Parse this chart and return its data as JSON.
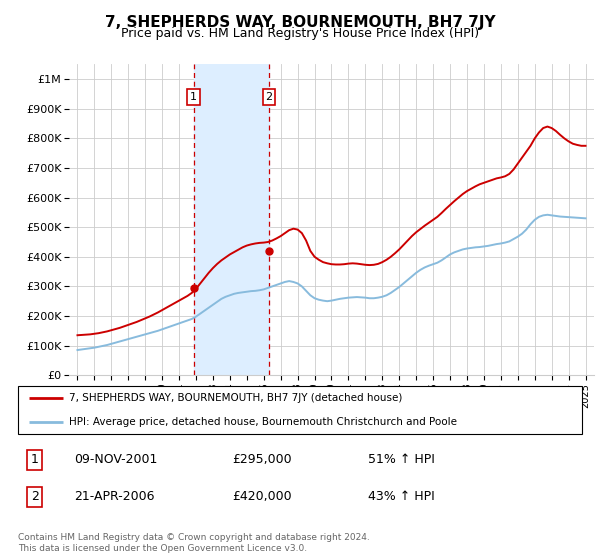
{
  "title": "7, SHEPHERDS WAY, BOURNEMOUTH, BH7 7JY",
  "subtitle": "Price paid vs. HM Land Registry's House Price Index (HPI)",
  "legend_line1": "7, SHEPHERDS WAY, BOURNEMOUTH, BH7 7JY (detached house)",
  "legend_line2": "HPI: Average price, detached house, Bournemouth Christchurch and Poole",
  "footnote": "Contains HM Land Registry data © Crown copyright and database right 2024.\nThis data is licensed under the Open Government Licence v3.0.",
  "sale1_date": "09-NOV-2001",
  "sale1_price": "£295,000",
  "sale1_hpi": "51% ↑ HPI",
  "sale2_date": "21-APR-2006",
  "sale2_price": "£420,000",
  "sale2_hpi": "43% ↑ HPI",
  "sale1_year": 2001.86,
  "sale2_year": 2006.31,
  "sale1_value": 295000,
  "sale2_value": 420000,
  "hpi_color": "#88bbdd",
  "price_color": "#cc0000",
  "shade_color": "#ddeeff",
  "ylim": [
    0,
    1050000
  ],
  "xlim_start": 1994.5,
  "xlim_end": 2025.5,
  "years": [
    1995,
    1995.25,
    1995.5,
    1995.75,
    1996,
    1996.25,
    1996.5,
    1996.75,
    1997,
    1997.25,
    1997.5,
    1997.75,
    1998,
    1998.25,
    1998.5,
    1998.75,
    1999,
    1999.25,
    1999.5,
    1999.75,
    2000,
    2000.25,
    2000.5,
    2000.75,
    2001,
    2001.25,
    2001.5,
    2001.75,
    2002,
    2002.25,
    2002.5,
    2002.75,
    2003,
    2003.25,
    2003.5,
    2003.75,
    2004,
    2004.25,
    2004.5,
    2004.75,
    2005,
    2005.25,
    2005.5,
    2005.75,
    2006,
    2006.25,
    2006.5,
    2006.75,
    2007,
    2007.25,
    2007.5,
    2007.75,
    2008,
    2008.25,
    2008.5,
    2008.75,
    2009,
    2009.25,
    2009.5,
    2009.75,
    2010,
    2010.25,
    2010.5,
    2010.75,
    2011,
    2011.25,
    2011.5,
    2011.75,
    2012,
    2012.25,
    2012.5,
    2012.75,
    2013,
    2013.25,
    2013.5,
    2013.75,
    2014,
    2014.25,
    2014.5,
    2014.75,
    2015,
    2015.25,
    2015.5,
    2015.75,
    2016,
    2016.25,
    2016.5,
    2016.75,
    2017,
    2017.25,
    2017.5,
    2017.75,
    2018,
    2018.25,
    2018.5,
    2018.75,
    2019,
    2019.25,
    2019.5,
    2019.75,
    2020,
    2020.25,
    2020.5,
    2020.75,
    2021,
    2021.25,
    2021.5,
    2021.75,
    2022,
    2022.25,
    2022.5,
    2022.75,
    2023,
    2023.25,
    2023.5,
    2023.75,
    2024,
    2024.25,
    2024.5,
    2024.75,
    2025
  ],
  "hpi_values": [
    85000,
    87000,
    89000,
    91000,
    93000,
    96000,
    99000,
    102000,
    106000,
    110000,
    114000,
    118000,
    122000,
    126000,
    130000,
    134000,
    138000,
    142000,
    146000,
    150000,
    155000,
    160000,
    165000,
    170000,
    175000,
    180000,
    185000,
    190000,
    198000,
    208000,
    218000,
    228000,
    238000,
    248000,
    258000,
    265000,
    270000,
    275000,
    278000,
    280000,
    282000,
    284000,
    285000,
    287000,
    290000,
    295000,
    300000,
    305000,
    310000,
    315000,
    318000,
    315000,
    310000,
    300000,
    285000,
    270000,
    260000,
    255000,
    252000,
    250000,
    252000,
    255000,
    258000,
    260000,
    262000,
    263000,
    264000,
    263000,
    262000,
    260000,
    260000,
    262000,
    265000,
    270000,
    278000,
    288000,
    298000,
    310000,
    322000,
    334000,
    346000,
    356000,
    364000,
    370000,
    375000,
    380000,
    388000,
    398000,
    408000,
    415000,
    420000,
    425000,
    428000,
    430000,
    432000,
    433000,
    435000,
    437000,
    440000,
    443000,
    445000,
    448000,
    452000,
    460000,
    468000,
    478000,
    492000,
    510000,
    525000,
    535000,
    540000,
    542000,
    540000,
    538000,
    536000,
    535000,
    534000,
    533000,
    532000,
    531000,
    530000
  ],
  "price_values": [
    135000,
    136000,
    137000,
    138000,
    140000,
    142000,
    145000,
    148000,
    152000,
    156000,
    160000,
    165000,
    170000,
    175000,
    180000,
    186000,
    192000,
    198000,
    205000,
    212000,
    220000,
    228000,
    236000,
    244000,
    252000,
    260000,
    268000,
    278000,
    292000,
    310000,
    328000,
    346000,
    362000,
    376000,
    388000,
    398000,
    408000,
    416000,
    424000,
    432000,
    438000,
    442000,
    445000,
    447000,
    448000,
    450000,
    455000,
    462000,
    470000,
    480000,
    490000,
    495000,
    492000,
    480000,
    455000,
    420000,
    400000,
    390000,
    382000,
    378000,
    375000,
    374000,
    374000,
    375000,
    377000,
    378000,
    377000,
    375000,
    373000,
    372000,
    373000,
    376000,
    382000,
    390000,
    400000,
    412000,
    425000,
    440000,
    455000,
    470000,
    483000,
    494000,
    505000,
    515000,
    525000,
    535000,
    548000,
    562000,
    575000,
    588000,
    600000,
    612000,
    622000,
    630000,
    638000,
    645000,
    650000,
    655000,
    660000,
    665000,
    668000,
    672000,
    680000,
    695000,
    715000,
    735000,
    755000,
    775000,
    800000,
    820000,
    835000,
    840000,
    835000,
    825000,
    812000,
    800000,
    790000,
    782000,
    778000,
    775000,
    775000
  ]
}
